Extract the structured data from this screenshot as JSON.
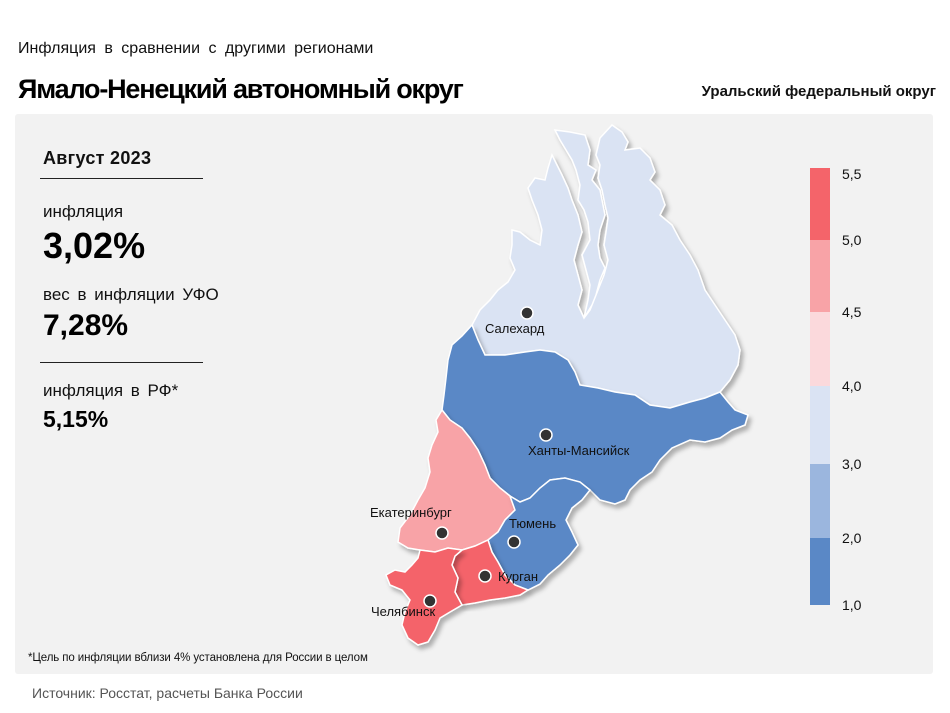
{
  "header": {
    "subtitle": "Инфляция  в сравнении  с другими  регионами",
    "title": "Ямало-Ненецкий автономный округ",
    "region_group": "Уральский федеральный округ"
  },
  "stats": {
    "period": "Август 2023",
    "inflation_label": "инфляция",
    "inflation_value": "3,02%",
    "weight_label": "вес в инфляции  УФО",
    "weight_value": "7,28%",
    "rf_label": "инфляция  в РФ*",
    "rf_value": "5,15%"
  },
  "footnote": "*Цель по инфляции вблизи 4% установлена для России в целом",
  "source": "Источник: Росстат, расчеты Банка России",
  "legend": {
    "ticks": [
      "5,5",
      "5,0",
      "4,5",
      "4,0",
      "3,0",
      "2,0",
      "1,0"
    ],
    "colors": [
      "#f4646a",
      "#f8a3a7",
      "#fbd9dc",
      "#dae3f3",
      "#9bb6de",
      "#5a88c6"
    ]
  },
  "map": {
    "regions": [
      {
        "name": "Ямало-Ненецкий АО",
        "city": "Салехард",
        "color": "#dae3f3"
      },
      {
        "name": "Ханты-Мансийский АО",
        "city": "Ханты-Мансийск",
        "color": "#5a88c6"
      },
      {
        "name": "Свердловская область",
        "city": "Екатеринбург",
        "color": "#f8a3a7"
      },
      {
        "name": "Тюменская область",
        "city": "Тюмень",
        "color": "#5a88c6"
      },
      {
        "name": "Курганская область",
        "city": "Курган",
        "color": "#f4646a"
      },
      {
        "name": "Челябинская область",
        "city": "Челябинск",
        "color": "#f4646a"
      }
    ]
  }
}
